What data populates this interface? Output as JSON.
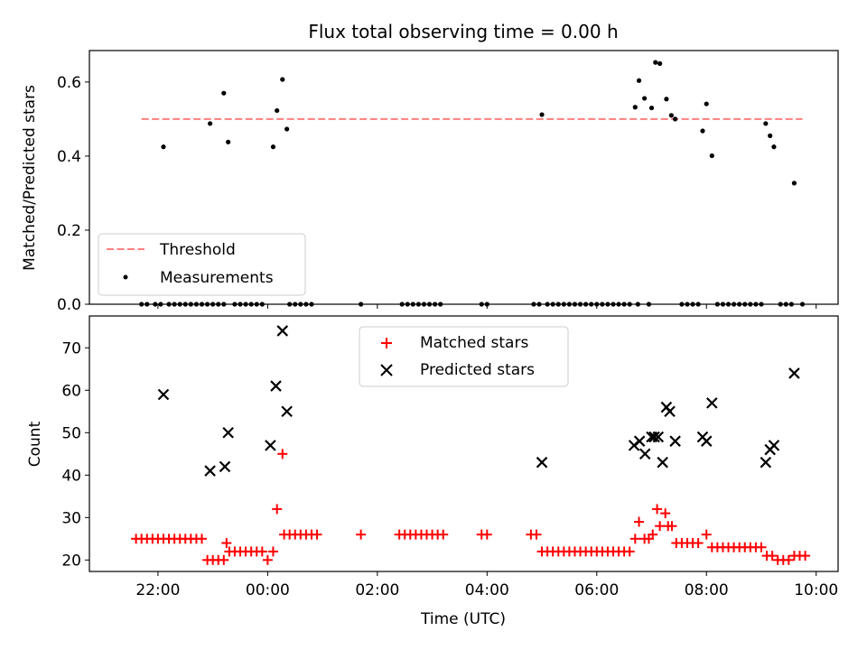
{
  "chart_data": [
    {
      "type": "scatter",
      "title": "Flux total observing time = 0.00 h",
      "xlabel": "",
      "ylabel": "Matched/Predicted stars",
      "xlim_hours": [
        -3.25,
        10.4
      ],
      "ylim": [
        0,
        0.685
      ],
      "yticks": [
        "0.0",
        "0.2",
        "0.4",
        "0.6"
      ],
      "ytick_values": [
        0,
        0.2,
        0.4,
        0.6
      ],
      "legend_position": "lower-left",
      "colors": {
        "threshold": "#ff7f7f",
        "measurements": "#000000"
      },
      "threshold": {
        "name": "Threshold",
        "y": 0.5,
        "x_range": [
          -2.3,
          9.75
        ]
      },
      "series": [
        {
          "name": "Measurements",
          "x": [
            -1.9,
            -1.05,
            -0.8,
            -0.72,
            0.1,
            0.17,
            0.27,
            0.35,
            5.0,
            6.7,
            6.77,
            6.87,
            7.0,
            7.07,
            7.15,
            7.27,
            7.36,
            7.43,
            7.93,
            8.0,
            8.1,
            9.08,
            9.16,
            9.23,
            9.6
          ],
          "y": [
            0.425,
            0.488,
            0.57,
            0.438,
            0.425,
            0.523,
            0.607,
            0.473,
            0.512,
            0.532,
            0.604,
            0.556,
            0.53,
            0.653,
            0.65,
            0.554,
            0.51,
            0.5,
            0.468,
            0.541,
            0.401,
            0.488,
            0.455,
            0.425,
            0.327
          ]
        },
        {
          "name": "Measurements (zero)",
          "x": [
            -2.3,
            -2.2,
            -2.05,
            -1.95,
            -1.8,
            -1.7,
            -1.6,
            -1.5,
            -1.4,
            -1.3,
            -1.2,
            -1.1,
            -1.0,
            -0.9,
            -0.8,
            -0.6,
            -0.5,
            -0.4,
            -0.3,
            -0.2,
            -0.1,
            0.4,
            0.5,
            0.6,
            0.7,
            0.8,
            1.7,
            2.45,
            2.55,
            2.65,
            2.75,
            2.85,
            2.95,
            3.05,
            3.15,
            3.9,
            4.0,
            4.85,
            4.95,
            5.1,
            5.2,
            5.3,
            5.4,
            5.5,
            5.6,
            5.7,
            5.8,
            5.9,
            6.0,
            6.1,
            6.2,
            6.3,
            6.4,
            6.5,
            6.6,
            6.75,
            6.95,
            7.55,
            7.65,
            7.75,
            7.85,
            8.2,
            8.3,
            8.4,
            8.5,
            8.6,
            8.7,
            8.8,
            8.9,
            9.0,
            9.35,
            9.45,
            9.55,
            9.75
          ]
        }
      ]
    },
    {
      "type": "scatter",
      "title": "",
      "xlabel": "Time (UTC)",
      "ylabel": "Count",
      "xlim_hours": [
        -3.25,
        10.4
      ],
      "ylim": [
        17.3,
        77.5
      ],
      "yticks": [
        "20",
        "30",
        "40",
        "50",
        "60",
        "70"
      ],
      "ytick_values": [
        20,
        30,
        40,
        50,
        60,
        70
      ],
      "xticks": [
        "22:00",
        "00:00",
        "02:00",
        "04:00",
        "06:00",
        "08:00",
        "10:00"
      ],
      "xtick_hours": [
        -2,
        0,
        2,
        4,
        6,
        8,
        10
      ],
      "legend_position": "top-center",
      "colors": {
        "matched": "#ff0000",
        "predicted": "#000000"
      },
      "series": [
        {
          "name": "Matched stars",
          "marker": "+",
          "x": [
            -2.4,
            -2.3,
            -2.2,
            -2.1,
            -2.0,
            -1.9,
            -1.8,
            -1.7,
            -1.6,
            -1.5,
            -1.4,
            -1.3,
            -1.2,
            -1.1,
            -1.0,
            -0.9,
            -0.8,
            -0.75,
            -0.7,
            -0.6,
            -0.5,
            -0.4,
            -0.3,
            -0.2,
            -0.1,
            0.0,
            0.1,
            0.17,
            0.27,
            0.3,
            0.4,
            0.5,
            0.6,
            0.7,
            0.8,
            0.9,
            1.7,
            2.4,
            2.5,
            2.6,
            2.7,
            2.8,
            2.9,
            3.0,
            3.1,
            3.2,
            3.9,
            4.0,
            4.8,
            4.9,
            5.0,
            5.1,
            5.2,
            5.3,
            5.4,
            5.5,
            5.6,
            5.7,
            5.8,
            5.9,
            6.0,
            6.1,
            6.2,
            6.3,
            6.4,
            6.5,
            6.6,
            6.7,
            6.77,
            6.87,
            6.95,
            7.02,
            7.1,
            7.15,
            7.25,
            7.3,
            7.37,
            7.45,
            7.55,
            7.65,
            7.75,
            7.85,
            8.0,
            8.1,
            8.2,
            8.3,
            8.4,
            8.5,
            8.6,
            8.7,
            8.8,
            8.9,
            9.0,
            9.1,
            9.2,
            9.3,
            9.4,
            9.5,
            9.6,
            9.7,
            9.8
          ],
          "y": [
            25,
            25,
            25,
            25,
            25,
            25,
            25,
            25,
            25,
            25,
            25,
            25,
            25,
            20,
            20,
            20,
            20,
            24,
            22,
            22,
            22,
            22,
            22,
            22,
            22,
            20,
            22,
            32,
            45,
            26,
            26,
            26,
            26,
            26,
            26,
            26,
            26,
            26,
            26,
            26,
            26,
            26,
            26,
            26,
            26,
            26,
            26,
            26,
            26,
            26,
            22,
            22,
            22,
            22,
            22,
            22,
            22,
            22,
            22,
            22,
            22,
            22,
            22,
            22,
            22,
            22,
            22,
            25,
            29,
            25,
            25,
            26,
            32,
            28,
            31,
            28,
            28,
            24,
            24,
            24,
            24,
            24,
            26,
            23,
            23,
            23,
            23,
            23,
            23,
            23,
            23,
            23,
            23,
            21,
            21,
            20,
            20,
            20,
            21,
            21,
            21
          ]
        },
        {
          "name": "Predicted stars",
          "marker": "x",
          "x": [
            -1.9,
            -1.05,
            -0.78,
            -0.72,
            0.05,
            0.15,
            0.27,
            0.35,
            5.0,
            6.68,
            6.78,
            6.88,
            7.0,
            7.05,
            7.12,
            7.2,
            7.27,
            7.33,
            7.43,
            7.93,
            8.0,
            8.1,
            9.08,
            9.16,
            9.23,
            9.6
          ],
          "y": [
            59,
            41,
            42,
            50,
            47,
            61,
            74,
            55,
            43,
            47,
            48,
            45,
            49,
            49,
            49,
            43,
            56,
            55,
            48,
            49,
            48,
            57,
            43,
            46,
            47,
            64
          ]
        }
      ]
    }
  ]
}
